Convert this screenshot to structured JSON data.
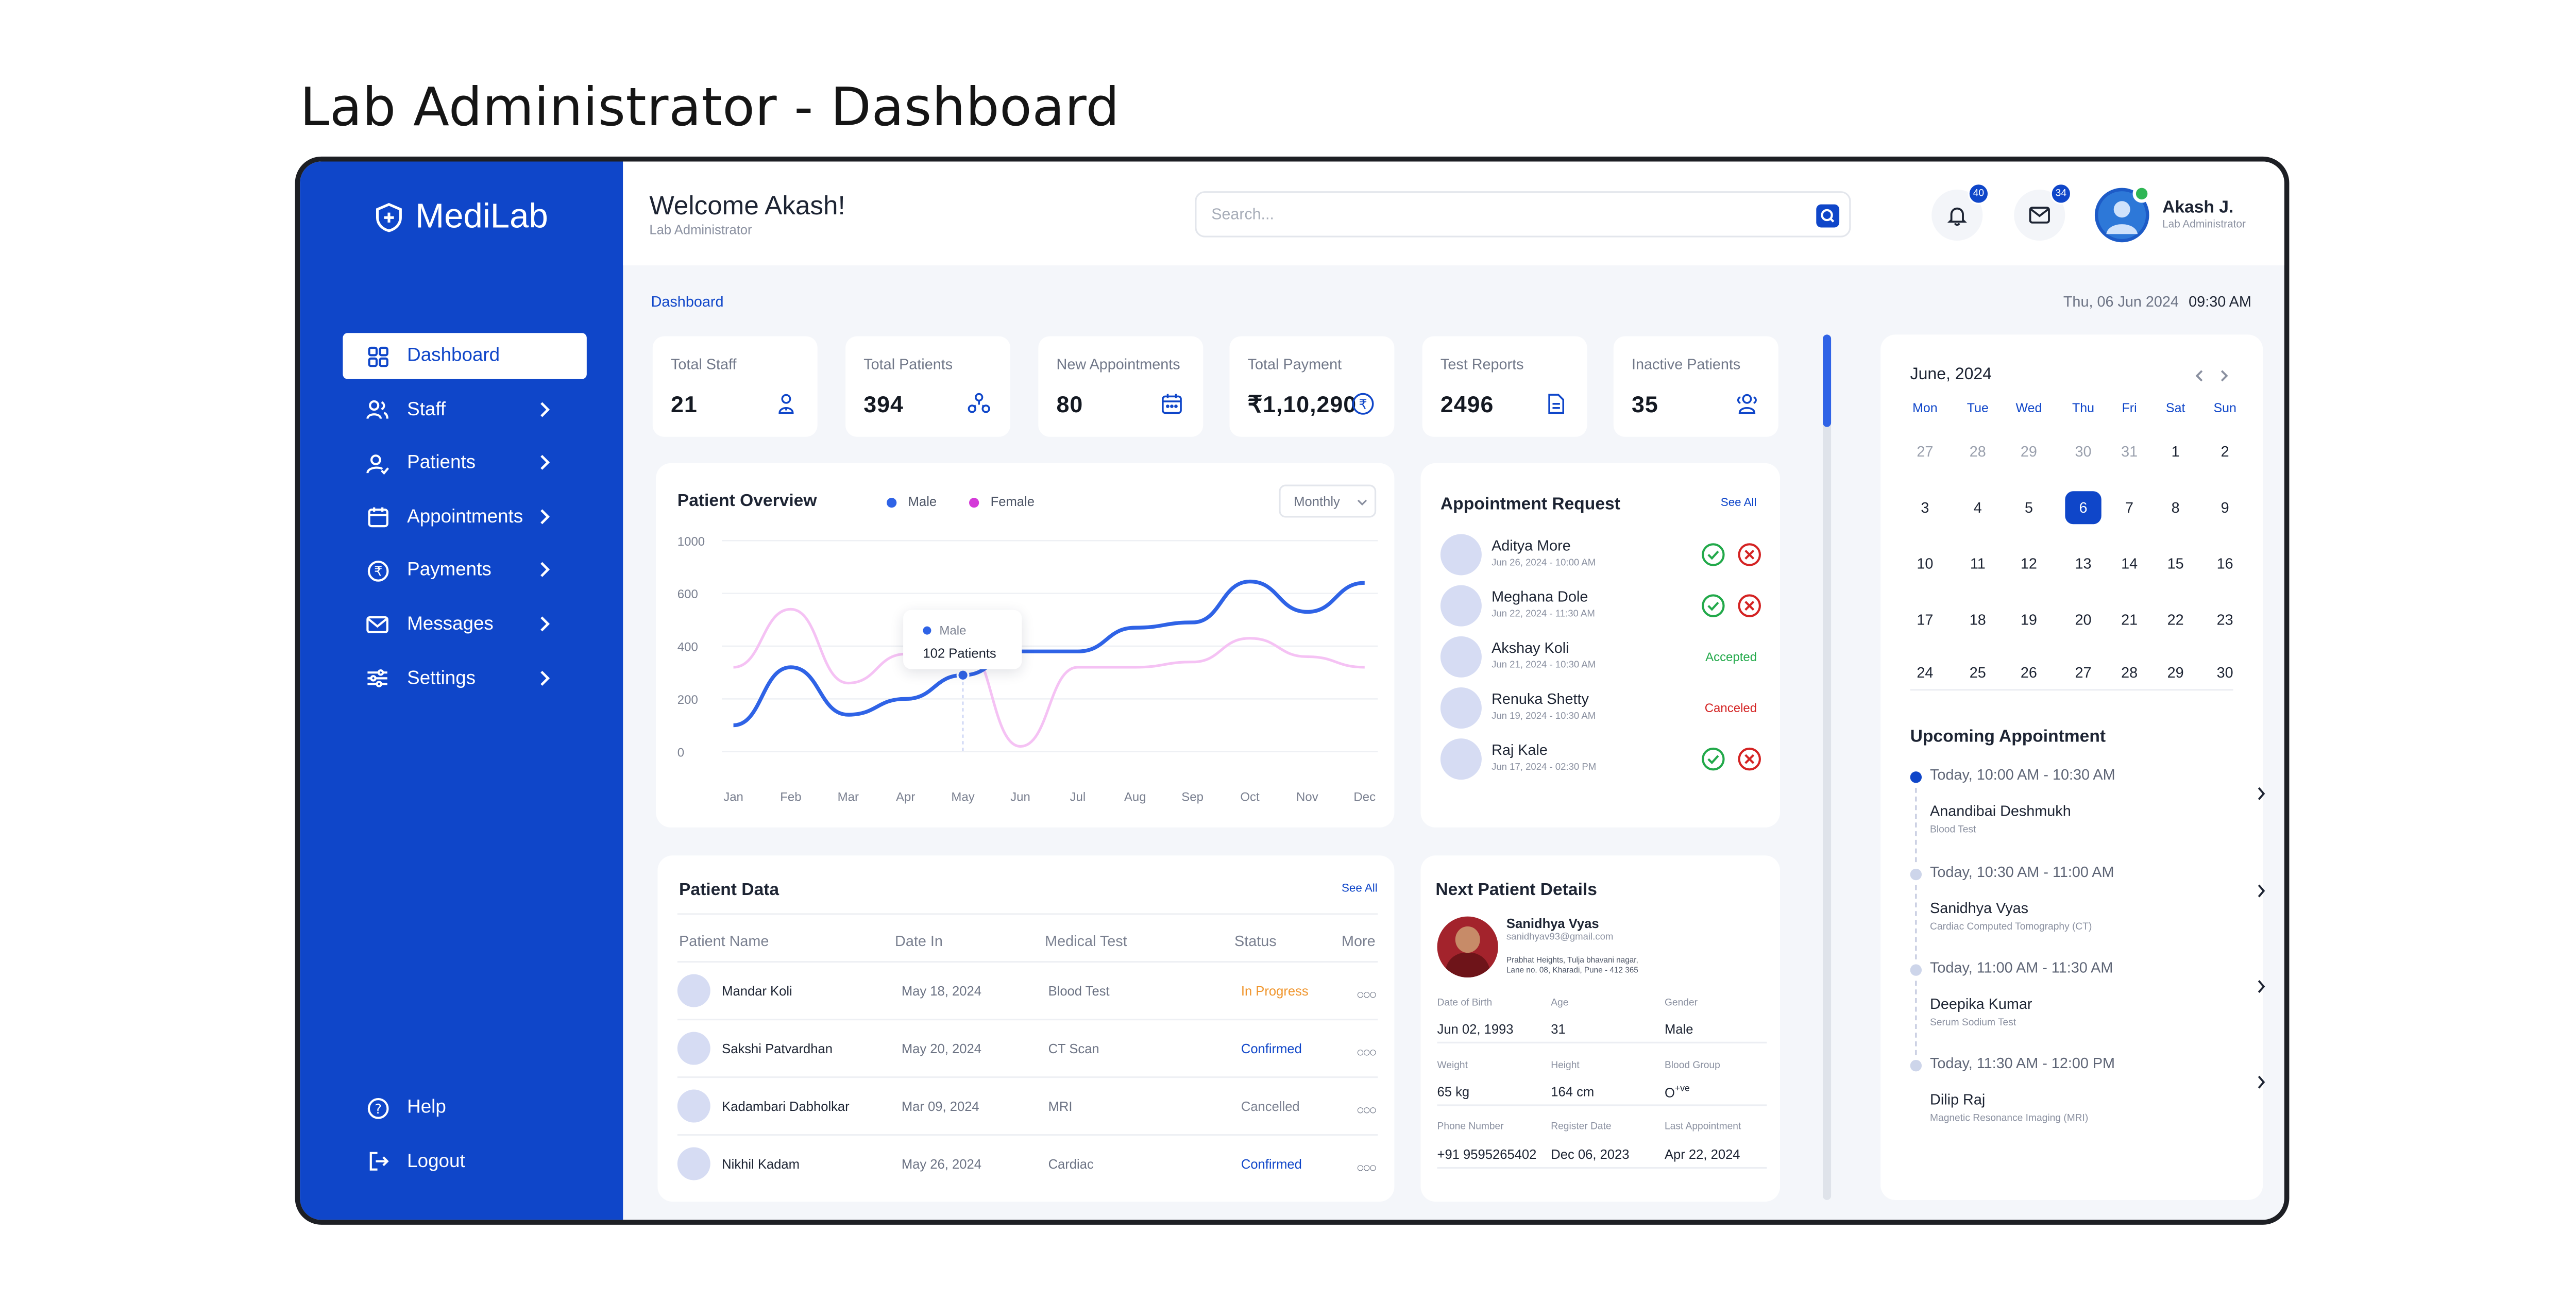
{
  "page_title": "Lab Administrator - Dashboard",
  "brand": {
    "name": "MediLab"
  },
  "sidebar": {
    "items": [
      {
        "label": "Dashboard",
        "icon": "grid-icon",
        "active": true
      },
      {
        "label": "Staff",
        "icon": "users-icon"
      },
      {
        "label": "Patients",
        "icon": "patient-icon"
      },
      {
        "label": "Appointments",
        "icon": "calendar-icon"
      },
      {
        "label": "Payments",
        "icon": "rupee-icon"
      },
      {
        "label": "Messages",
        "icon": "mail-icon"
      },
      {
        "label": "Settings",
        "icon": "sliders-icon"
      }
    ],
    "bottom": [
      {
        "label": "Help",
        "icon": "help-icon"
      },
      {
        "label": "Logout",
        "icon": "logout-icon"
      }
    ]
  },
  "header": {
    "welcome": "Welcome Akash!",
    "role": "Lab Administrator",
    "search_placeholder": "Search...",
    "notifications_count": "40",
    "messages_count": "34",
    "user_name": "Akash J.",
    "user_role": "Lab Administrator"
  },
  "breadcrumb": "Dashboard",
  "date": "Thu, 06 Jun 2024",
  "time": "09:30 AM",
  "stats": [
    {
      "label": "Total Staff",
      "value": "21",
      "icon": "staff-icon"
    },
    {
      "label": "Total Patients",
      "value": "394",
      "icon": "patients-icon"
    },
    {
      "label": "New Appointments",
      "value": "80",
      "icon": "calendar-icon"
    },
    {
      "label": "Total Payment",
      "value": "₹1,10,290",
      "icon": "rupee-icon"
    },
    {
      "label": "Test Reports",
      "value": "2496",
      "icon": "document-icon"
    },
    {
      "label": "Inactive Patients",
      "value": "35",
      "icon": "group-icon"
    }
  ],
  "overview": {
    "title": "Patient Overview",
    "legend_male": "Male",
    "legend_female": "Female",
    "period": "Monthly",
    "tooltip_label": "Male",
    "tooltip_value": "102 Patients"
  },
  "chart_data": {
    "type": "line",
    "categories": [
      "Jan",
      "Feb",
      "Mar",
      "Apr",
      "May",
      "Jun",
      "Jul",
      "Aug",
      "Sep",
      "Oct",
      "Nov",
      "Dec"
    ],
    "yticks": [
      "1000",
      "600",
      "400",
      "200",
      "0"
    ],
    "series": [
      {
        "name": "Male",
        "color": "#2f63e6",
        "values": [
          100,
          320,
          140,
          200,
          290,
          380,
          380,
          470,
          490,
          690,
          530,
          680
        ]
      },
      {
        "name": "Female",
        "color": "#f5c2f4",
        "values": [
          320,
          540,
          260,
          370,
          410,
          20,
          320,
          320,
          340,
          430,
          360,
          320
        ]
      }
    ]
  },
  "appointment_request": {
    "title": "Appointment Request",
    "see_all": "See All",
    "items": [
      {
        "name": "Aditya More",
        "date": "Jun 26, 2024 - 10:00 AM",
        "status": "actions"
      },
      {
        "name": "Meghana Dole",
        "date": "Jun 22, 2024 - 11:30 AM",
        "status": "actions"
      },
      {
        "name": "Akshay Koli",
        "date": "Jun 21, 2024 - 10:30 AM",
        "status": "Accepted"
      },
      {
        "name": "Renuka Shetty",
        "date": "Jun 19, 2024 - 10:30 AM",
        "status": "Canceled"
      },
      {
        "name": "Raj Kale",
        "date": "Jun 17, 2024 - 02:30 PM",
        "status": "actions"
      }
    ]
  },
  "patient_data": {
    "title": "Patient Data",
    "see_all": "See All",
    "columns": [
      "Patient Name",
      "Date In",
      "Medical Test",
      "Status",
      "More"
    ],
    "rows": [
      {
        "name": "Mandar Koli",
        "date": "May 18, 2024",
        "test": "Blood Test",
        "status": "In Progress"
      },
      {
        "name": "Sakshi Patvardhan",
        "date": "May 20, 2024",
        "test": "CT Scan",
        "status": "Confirmed"
      },
      {
        "name": "Kadambari Dabholkar",
        "date": "Mar 09, 2024",
        "test": "MRI",
        "status": "Cancelled"
      },
      {
        "name": "Nikhil Kadam",
        "date": "May 26, 2024",
        "test": "Cardiac",
        "status": "Confirmed"
      }
    ]
  },
  "next_patient": {
    "title": "Next Patient Details",
    "name": "Sanidhya Vyas",
    "email": "sanidhyav93@gmail.com",
    "address_line1": "Prabhat Heights, Tulja bhavani nagar,",
    "address_line2": "Lane no. 08, Kharadi, Pune - 412 365",
    "fields": [
      {
        "label": "Date of Birth",
        "value": "Jun 02, 1993"
      },
      {
        "label": "Age",
        "value": "31"
      },
      {
        "label": "Gender",
        "value": "Male"
      },
      {
        "label": "Weight",
        "value": "65 kg"
      },
      {
        "label": "Height",
        "value": "164 cm"
      },
      {
        "label": "Blood Group",
        "value": "O"
      },
      {
        "label": "Phone Number",
        "value": "+91 9595265402"
      },
      {
        "label": "Register Date",
        "value": "Dec 06, 2023"
      },
      {
        "label": "Last Appointment",
        "value": "Apr 22, 2024"
      }
    ],
    "blood_sup": "+ve"
  },
  "calendar": {
    "month": "June, 2024",
    "days": [
      "Mon",
      "Tue",
      "Wed",
      "Thu",
      "Fri",
      "Sat",
      "Sun"
    ],
    "weeks": [
      [
        "27",
        "28",
        "29",
        "30",
        "31",
        "1",
        "2"
      ],
      [
        "3",
        "4",
        "5",
        "6",
        "7",
        "8",
        "9"
      ],
      [
        "10",
        "11",
        "12",
        "13",
        "14",
        "15",
        "16"
      ],
      [
        "17",
        "18",
        "19",
        "20",
        "21",
        "22",
        "23"
      ],
      [
        "24",
        "25",
        "26",
        "27",
        "28",
        "29",
        "30"
      ]
    ],
    "selected": "6"
  },
  "upcoming": {
    "title": "Upcoming Appointment",
    "items": [
      {
        "time": "Today, 10:00 AM - 10:30 AM",
        "name": "Anandibai Deshmukh",
        "test": "Blood Test",
        "active": true
      },
      {
        "time": "Today, 10:30 AM - 11:00 AM",
        "name": "Sanidhya Vyas",
        "test": "Cardiac Computed Tomography (CT)"
      },
      {
        "time": "Today, 11:00 AM - 11:30 AM",
        "name": "Deepika Kumar",
        "test": "Serum Sodium Test"
      },
      {
        "time": "Today, 11:30 AM - 12:00 PM",
        "name": "Dilip Raj",
        "test": "Magnetic Resonance Imaging (MRI)"
      }
    ]
  },
  "colors": {
    "primary": "#0f46c9",
    "male": "#2f63e6",
    "female": "#f5c2f4",
    "accepted": "#22a94a",
    "canceled": "#d42323",
    "in_progress": "#f0952c"
  }
}
